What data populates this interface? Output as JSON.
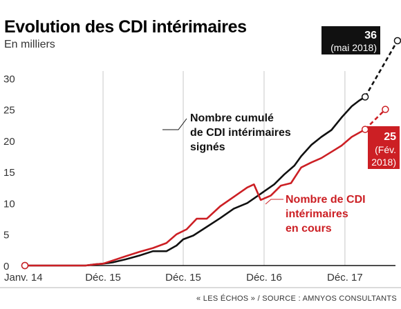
{
  "chart_data": {
    "type": "line",
    "title": "Evolution des CDI intérimaires",
    "subtitle": "En milliers",
    "source": "« LES ÉCHOS » / SOURCE : AMNYOS CONSULTANTS",
    "x_tick_labels": [
      "Janv. 14",
      "Déc. 15",
      "Déc. 15",
      "Déc. 16",
      "Déc. 17"
    ],
    "y_ticks": [
      0,
      5,
      10,
      15,
      20,
      25,
      30
    ],
    "ylim": [
      0,
      36
    ],
    "x_unit": "months since the start of the series (Janv. 14 = 0)",
    "xlim": [
      0,
      55
    ],
    "grid": "vertical",
    "colors": {
      "cumulative": "#111111",
      "current": "#cc1f24",
      "grid": "#c8c8c8"
    },
    "series": [
      {
        "name": "Nombre cumulé de CDI intérimaires signés",
        "label_lines": [
          "Nombre cumulé",
          "de CDI intérimaires",
          "signés"
        ],
        "color": "#111111",
        "points": [
          [
            0,
            0
          ],
          [
            3,
            0
          ],
          [
            6,
            0
          ],
          [
            9,
            0
          ],
          [
            10.5,
            0.2
          ],
          [
            11.6,
            0.3
          ],
          [
            13,
            0.5
          ],
          [
            15,
            1
          ],
          [
            17,
            1.6
          ],
          [
            19,
            2.3
          ],
          [
            21,
            2.3
          ],
          [
            22.5,
            3.2
          ],
          [
            23.5,
            4.2
          ],
          [
            25,
            4.8
          ],
          [
            27,
            6.2
          ],
          [
            29,
            7.6
          ],
          [
            31,
            9.1
          ],
          [
            33,
            10
          ],
          [
            35,
            11.5
          ],
          [
            37,
            13
          ],
          [
            38.5,
            14.6
          ],
          [
            40,
            16
          ],
          [
            41,
            17.5
          ],
          [
            42.5,
            19.3
          ],
          [
            44,
            20.6
          ],
          [
            45.5,
            21.7
          ],
          [
            47,
            23.7
          ],
          [
            48.5,
            25.5
          ],
          [
            49.6,
            26.4
          ],
          [
            50.5,
            27
          ]
        ],
        "projection": [
          [
            50.5,
            27
          ],
          [
            55.3,
            36
          ]
        ],
        "end_label": {
          "value": "36",
          "date": "(mai 2018)"
        }
      },
      {
        "name": "Nombre de CDI intérimaires en cours",
        "label_lines": [
          "Nombre de CDI",
          "intérimaires",
          "en cours"
        ],
        "color": "#cc1f24",
        "points": [
          [
            0,
            0
          ],
          [
            3,
            0
          ],
          [
            6,
            0
          ],
          [
            9,
            0
          ],
          [
            10.5,
            0.2
          ],
          [
            11.6,
            0.3
          ],
          [
            13,
            0.8
          ],
          [
            15,
            1.5
          ],
          [
            17,
            2.2
          ],
          [
            19,
            2.8
          ],
          [
            21,
            3.6
          ],
          [
            22.5,
            5
          ],
          [
            24,
            5.8
          ],
          [
            25.5,
            7.5
          ],
          [
            27,
            7.5
          ],
          [
            29,
            9.5
          ],
          [
            31,
            11
          ],
          [
            33,
            12.5
          ],
          [
            34,
            13
          ],
          [
            35,
            10.5
          ],
          [
            36.5,
            11.2
          ],
          [
            38,
            12.8
          ],
          [
            39.5,
            13.2
          ],
          [
            41,
            15.7
          ],
          [
            42.5,
            16.5
          ],
          [
            44,
            17.2
          ],
          [
            45.5,
            18.2
          ],
          [
            47,
            19.2
          ],
          [
            48.5,
            20.6
          ],
          [
            50.5,
            21.8
          ]
        ],
        "projection": [
          [
            50.5,
            21.8
          ],
          [
            53.5,
            25
          ]
        ],
        "end_label": {
          "value": "25",
          "date_lines": [
            "(Fév.",
            "2018)"
          ]
        }
      }
    ]
  }
}
